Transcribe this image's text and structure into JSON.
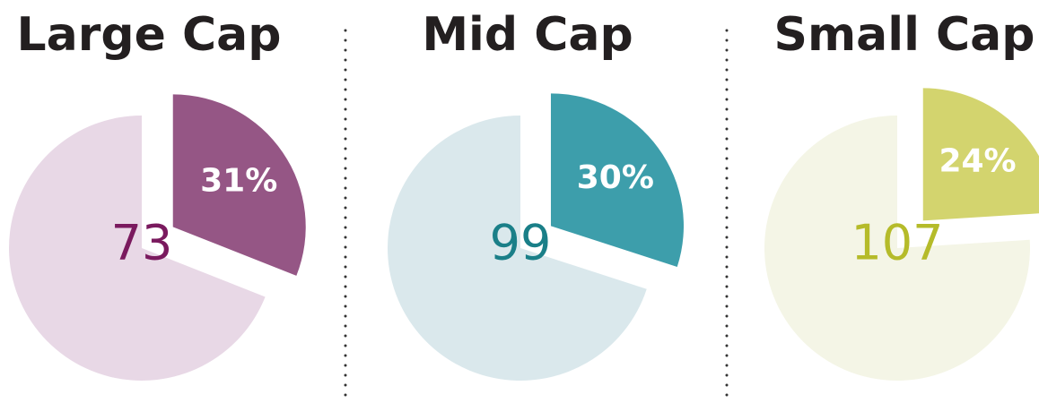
{
  "chart_data": [
    {
      "type": "pie",
      "title": "Large Cap",
      "values": [
        31,
        69
      ],
      "value_labels": [
        "31%",
        null
      ],
      "colors": [
        "#955685",
        "#e8d8e6"
      ],
      "center_value": 73,
      "center_color": "#7a1a5e"
    },
    {
      "type": "pie",
      "title": "Mid Cap",
      "values": [
        30,
        70
      ],
      "value_labels": [
        "30%",
        null
      ],
      "colors": [
        "#3d9eab",
        "#dae8ec"
      ],
      "center_value": 99,
      "center_color": "#1a7f88"
    },
    {
      "type": "pie",
      "title": "Small Cap",
      "values": [
        24,
        76
      ],
      "value_labels": [
        "24%",
        null
      ],
      "colors": [
        "#d3d46e",
        "#f4f5e6"
      ],
      "center_value": 107,
      "center_color": "#b5bb2a"
    }
  ]
}
